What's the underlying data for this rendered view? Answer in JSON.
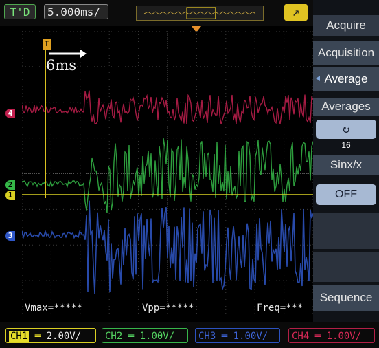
{
  "top_bar": {
    "mode": "T'D",
    "timebase": "5.000ms/",
    "trigger_slope_icon": "rising-edge-icon"
  },
  "cursor": {
    "tag": "T",
    "label": "6ms"
  },
  "measurements": {
    "vmax": "Vmax=*****",
    "vpp": "Vpp=*****",
    "freq": "Freq=***"
  },
  "menu": {
    "title": "Acquire",
    "acquisition": "Acquisition",
    "average": "Average",
    "averages_label": "Averages",
    "averages_value": "16",
    "sinx_label": "Sinx/x",
    "sinx_value": "OFF",
    "sequence": "Sequence"
  },
  "channels": {
    "ch1": {
      "name": "CH1",
      "coupling_icon": "dc-coupling-icon",
      "scale": "2.00V/",
      "marker": "1",
      "color": "#d8cf22"
    },
    "ch2": {
      "label": "CH2",
      "scale": "1.00V/",
      "marker": "2",
      "color": "#35b848"
    },
    "ch3": {
      "label": "CH3",
      "scale": "1.00V/",
      "marker": "3",
      "color": "#2f57c8"
    },
    "ch4": {
      "label": "CH4",
      "scale": "1.00V/",
      "marker": "4",
      "color": "#c2204f"
    }
  }
}
